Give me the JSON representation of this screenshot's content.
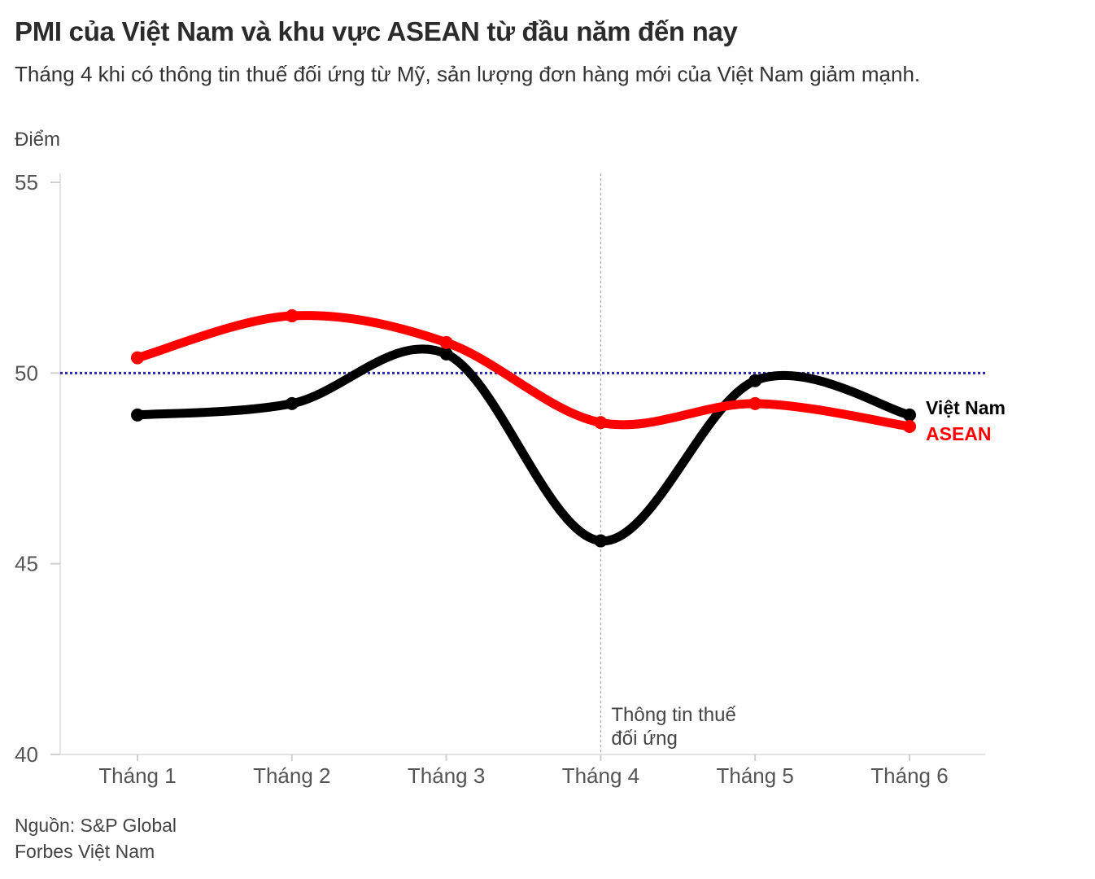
{
  "header": {
    "title": "PMI của Việt Nam và khu vực ASEAN từ đầu năm đến nay",
    "subtitle": "Tháng 4 khi có thông tin thuế đối ứng từ Mỹ, sản lượng đơn hàng mới của Việt Nam giảm mạnh."
  },
  "footer": {
    "source": "Nguồn: S&P Global",
    "publisher": "Forbes Việt Nam"
  },
  "chart_data": {
    "type": "line",
    "title": "PMI của Việt Nam và khu vực ASEAN từ đầu năm đến nay",
    "ylabel": "Điểm",
    "xlabel": "",
    "categories": [
      "Tháng 1",
      "Tháng 2",
      "Tháng 3",
      "Tháng 4",
      "Tháng 5",
      "Tháng 6"
    ],
    "ylim": [
      40,
      55
    ],
    "yticks": [
      40,
      45,
      50,
      55
    ],
    "grid": false,
    "reference_line": {
      "y": 50,
      "style": "dotted",
      "color": "#2a2aa8"
    },
    "annotation": {
      "category": "Tháng 4",
      "lines": [
        "Thông tin thuế",
        "đối ứng"
      ]
    },
    "series": [
      {
        "name": "Việt Nam",
        "color": "#000000",
        "values": [
          48.9,
          49.2,
          50.5,
          45.6,
          49.8,
          48.9
        ]
      },
      {
        "name": "ASEAN",
        "color": "#ff0000",
        "values": [
          50.4,
          51.5,
          50.8,
          48.7,
          49.2,
          48.6
        ]
      }
    ]
  }
}
